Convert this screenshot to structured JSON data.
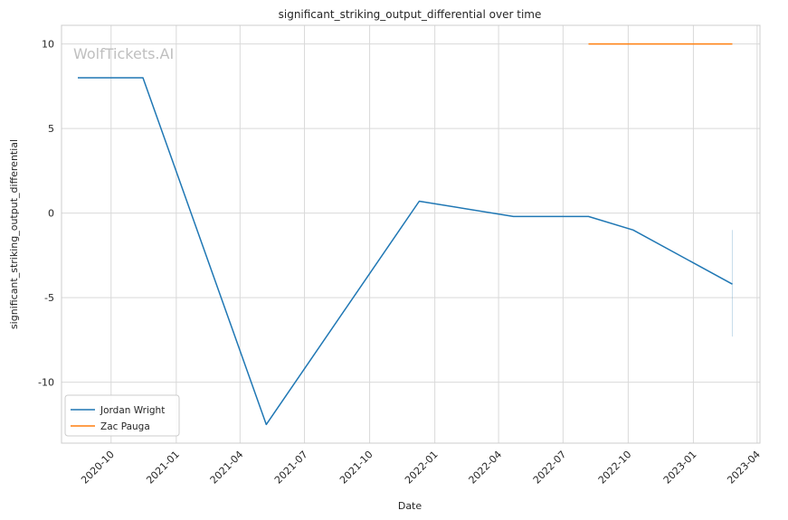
{
  "chart_data": {
    "type": "line",
    "title": "significant_striking_output_differential over time",
    "xlabel": "Date",
    "ylabel": "significant_striking_output_differential",
    "watermark": "WolfTickets.AI",
    "x_ticks": [
      "2020-10",
      "2021-01",
      "2021-04",
      "2021-07",
      "2021-10",
      "2022-01",
      "2022-04",
      "2022-07",
      "2022-10",
      "2023-01",
      "2023-04"
    ],
    "y_ticks": [
      10,
      5,
      0,
      -5,
      -10
    ],
    "xlim": [
      "2020-07-23",
      "2023-04-05"
    ],
    "ylim": [
      -13.6,
      11.1
    ],
    "grid": true,
    "legend_position": "lower-left",
    "series": [
      {
        "name": "Jordan Wright",
        "color": "#1f77b4",
        "points": [
          {
            "x": "2020-08-15",
            "y": 8.0
          },
          {
            "x": "2020-11-15",
            "y": 8.0
          },
          {
            "x": "2021-05-08",
            "y": -12.5
          },
          {
            "x": "2021-12-10",
            "y": 0.7
          },
          {
            "x": "2022-04-22",
            "y": -0.2
          },
          {
            "x": "2022-08-06",
            "y": -0.2
          },
          {
            "x": "2022-10-08",
            "y": -1.0
          },
          {
            "x": "2023-02-25",
            "y": -4.2
          }
        ],
        "error_band": {
          "x": "2023-02-25",
          "low": -7.3,
          "high": -1.0
        }
      },
      {
        "name": "Zac Pauga",
        "color": "#ff7f0e",
        "points": [
          {
            "x": "2022-08-06",
            "y": 10.0
          },
          {
            "x": "2023-02-25",
            "y": 10.0
          }
        ]
      }
    ]
  }
}
